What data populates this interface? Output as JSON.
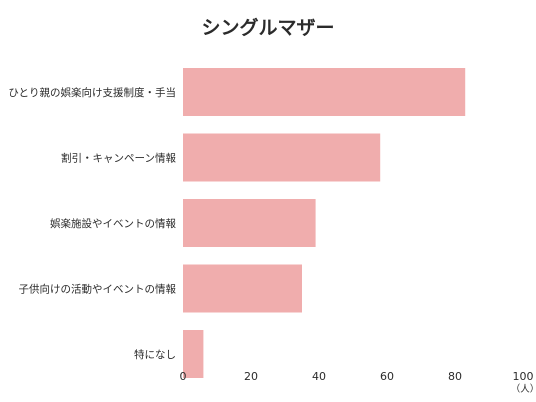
{
  "chart_data": {
    "type": "bar",
    "orientation": "horizontal",
    "title": "シングルマザー",
    "categories": [
      "ひとり親の娯楽向け支援制度・手当",
      "割引・キャンペーン情報",
      "娯楽施設やイベントの情報",
      "子供向けの活動やイベントの情報",
      "特になし"
    ],
    "values": [
      83,
      58,
      39,
      35,
      6
    ],
    "xlim": [
      0,
      100
    ],
    "xticks": [
      "0",
      "20",
      "40",
      "60",
      "80",
      "100"
    ],
    "xunit": "（人）",
    "grid": false,
    "bar_color": "#f0adad"
  }
}
